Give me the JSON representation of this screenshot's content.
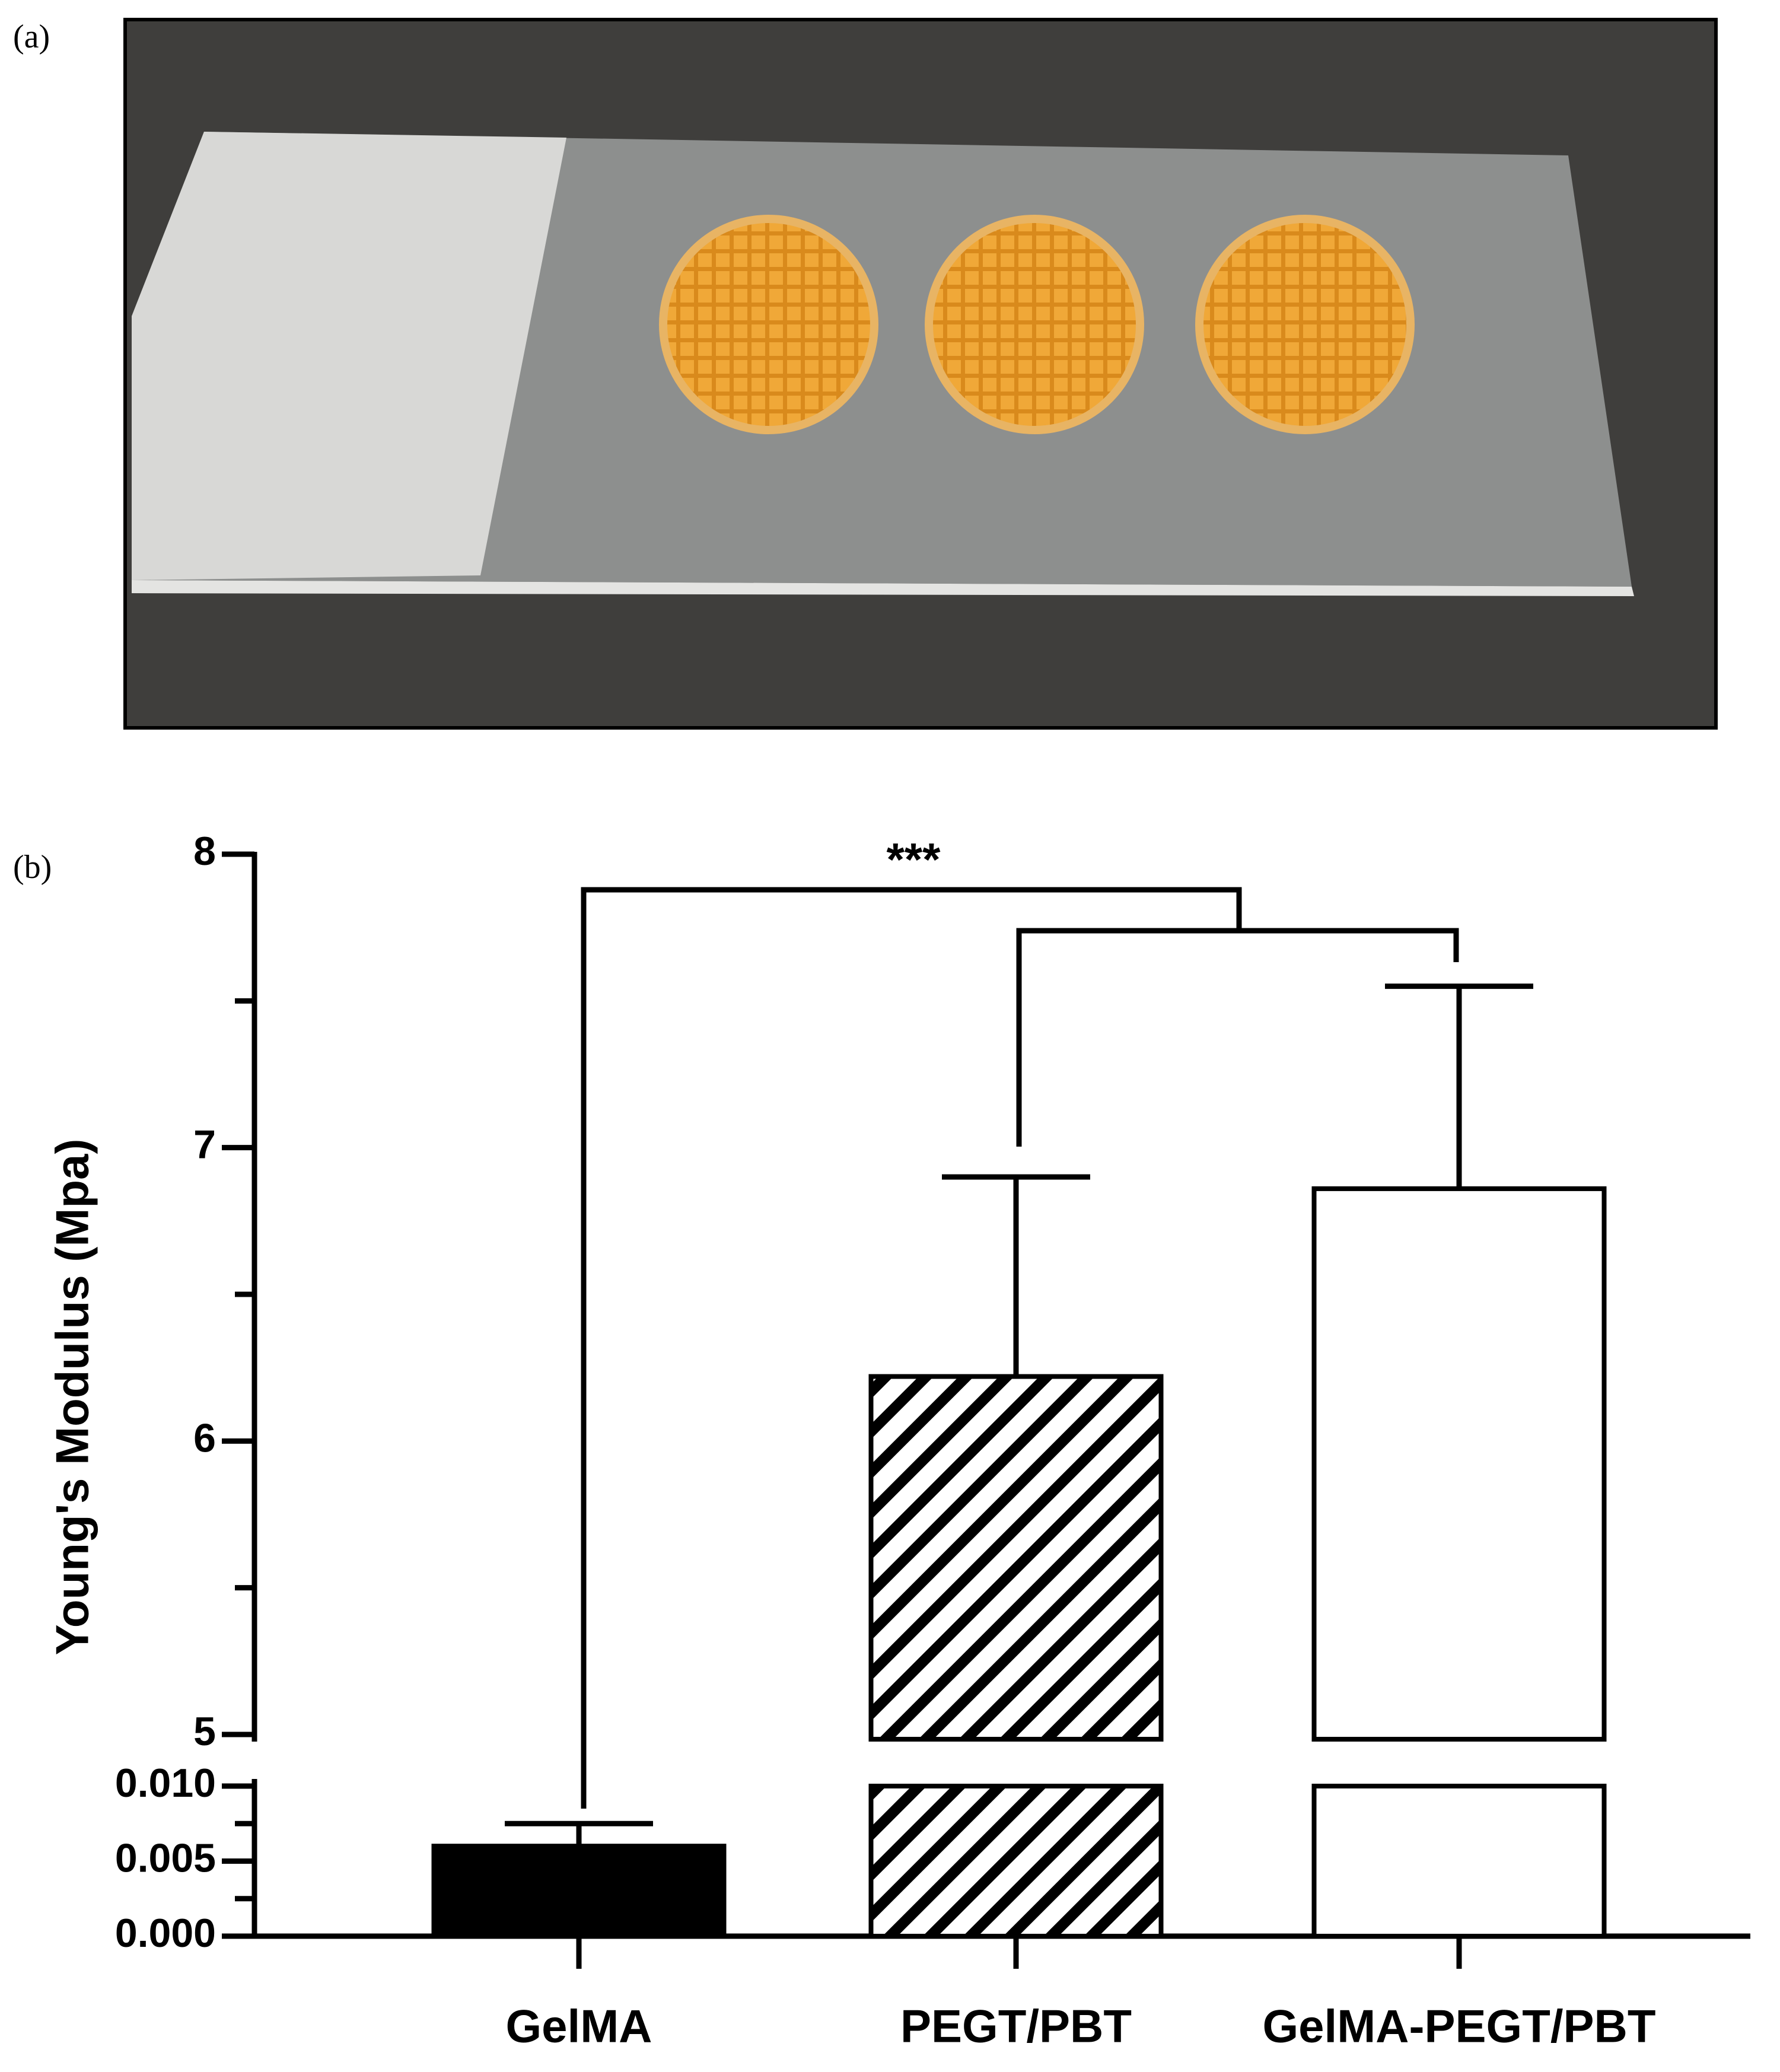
{
  "panel_a_label": "(a)",
  "chart_data": {
    "type": "bar",
    "panel_label": "(b)",
    "y_label": "Young's Modulus (Mpa)",
    "categories": [
      "GelMA",
      "PEGT/PBT",
      "GelMA-PEGT/PBT"
    ],
    "values": [
      0.006,
      6.22,
      6.86
    ],
    "errors": [
      0.0015,
      0.68,
      0.69
    ],
    "fills": [
      "solid",
      "hatch",
      "open"
    ],
    "color": "#000000",
    "segments": [
      {
        "ylim": [
          0,
          0.01
        ],
        "yticks": [
          {
            "value": 0,
            "label": "0.000"
          },
          {
            "value": 0.005,
            "label": "0.005"
          },
          {
            "value": 0.01,
            "label": "0.010"
          }
        ],
        "yminor": [
          0.0025,
          0.0075
        ]
      },
      {
        "ylim": [
          5,
          8
        ],
        "yticks": [
          5,
          6,
          7,
          8
        ],
        "yminor": [
          5.5,
          6.5,
          7.5
        ]
      }
    ],
    "annotation": "***"
  }
}
